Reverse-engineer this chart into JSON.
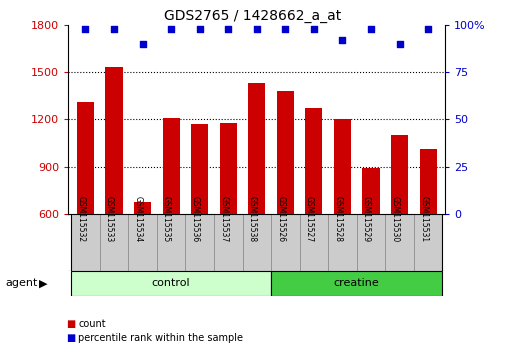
{
  "title": "GDS2765 / 1428662_a_at",
  "samples": [
    "GSM115532",
    "GSM115533",
    "GSM115534",
    "GSM115535",
    "GSM115536",
    "GSM115537",
    "GSM115538",
    "GSM115526",
    "GSM115527",
    "GSM115528",
    "GSM115529",
    "GSM115530",
    "GSM115531"
  ],
  "counts": [
    1310,
    1530,
    680,
    1210,
    1170,
    1175,
    1430,
    1380,
    1270,
    1200,
    890,
    1100,
    1010
  ],
  "percentiles": [
    98,
    98,
    90,
    98,
    98,
    98,
    98,
    98,
    98,
    92,
    98,
    90,
    98
  ],
  "groups": [
    "control",
    "control",
    "control",
    "control",
    "control",
    "control",
    "control",
    "creatine",
    "creatine",
    "creatine",
    "creatine",
    "creatine",
    "creatine"
  ],
  "bar_color": "#cc0000",
  "dot_color": "#0000cc",
  "ylim_left": [
    600,
    1800
  ],
  "ylim_right": [
    0,
    100
  ],
  "left_ticks": [
    600,
    900,
    1200,
    1500,
    1800
  ],
  "right_ticks": [
    0,
    25,
    50,
    75,
    100
  ],
  "right_tick_labels": [
    "0",
    "25",
    "50",
    "75",
    "100%"
  ],
  "control_color": "#ccffcc",
  "creatine_color": "#44cc44",
  "label_area_color": "#cccccc",
  "legend_count_color": "#cc0000",
  "legend_pct_color": "#0000cc",
  "n_control": 7,
  "n_creatine": 6
}
